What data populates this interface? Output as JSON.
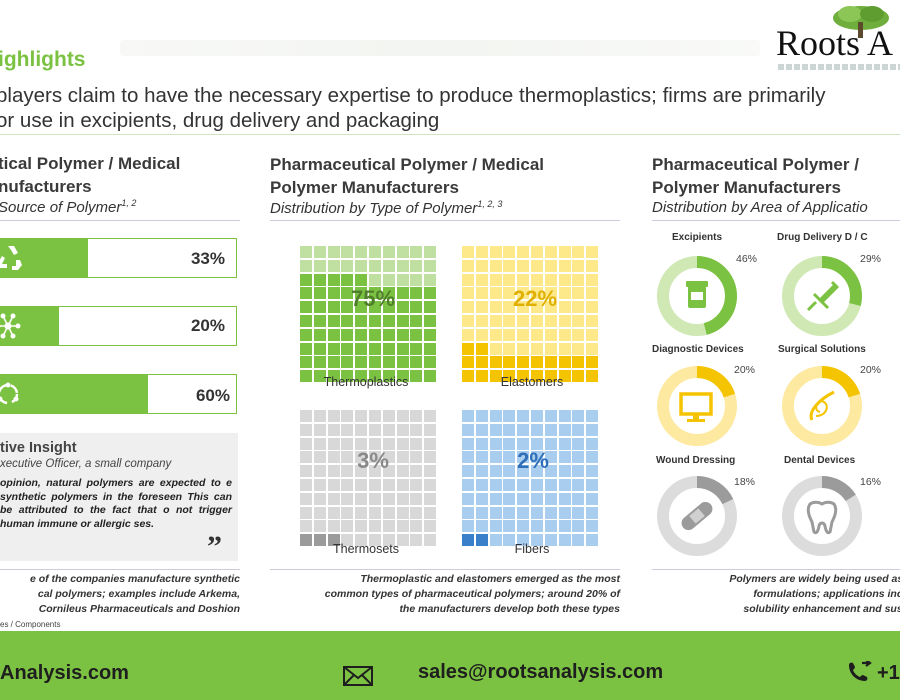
{
  "header": {
    "title": "ighlights",
    "subtitle_line1": "players claim to have the necessary expertise to produce thermoplastics; firms are primarily",
    "subtitle_line2": "or use in excipients, drug delivery and packaging"
  },
  "logo": {
    "text": "Roots A"
  },
  "left": {
    "title_line1": "tical Polymer / Medical",
    "title_line2": "nufacturers",
    "subtitle": "Source of Polymer",
    "subtitle_sup": "1, 2",
    "bars": [
      {
        "icon": "recycle-icon",
        "value": 33,
        "label": "33%"
      },
      {
        "icon": "molecule-icon",
        "value": 20,
        "label": "20%"
      },
      {
        "icon": "cycle-arrows-icon",
        "value": 60,
        "label": "60%"
      }
    ],
    "insight": {
      "title": "tive Insight",
      "subtitle": "xecutive Officer, a small company",
      "text": "opinion, natural polymers are expected to e synthetic polymers in the foreseen This can be attributed to the fact that o not trigger human immune or allergic ses.",
      "quote": "”"
    },
    "note_line1": "e of the companies manufacture synthetic",
    "note_line2": "cal polymers; examples include Arkema,",
    "note_line3": "Cornileus Pharmaceuticals and Doshion",
    "footnote": "es / Components"
  },
  "middle": {
    "title_line1": "Pharmaceutical Polymer / Medical",
    "title_line2": "Polymer Manufacturers",
    "subtitle": "Distribution by Type of Polymer",
    "subtitle_sup": "1, 2, 3",
    "waffles": [
      {
        "label": "Thermoplastics",
        "pct": "75%",
        "value": 75,
        "fill": "#7cc242",
        "empty": "#bfe0a0",
        "text": "#4f7f2a"
      },
      {
        "label": "Elastomers",
        "pct": "22%",
        "value": 22,
        "fill": "#f5c400",
        "empty": "#fde88a",
        "text": "#e0b000"
      },
      {
        "label": "Thermosets",
        "pct": "3%",
        "value": 3,
        "fill": "#9b9b9b",
        "empty": "#d8d8d8",
        "text": "#8a8a8a"
      },
      {
        "label": "Fibers",
        "pct": "2%",
        "value": 2,
        "fill": "#3a7fc9",
        "empty": "#a9cdee",
        "text": "#2f6fb8"
      }
    ],
    "note_line1": "Thermoplastic and elastomers emerged as the most",
    "note_line2": "common types of pharmaceutical polymers; around 20% of",
    "note_line3": "the manufacturers  develop both these types"
  },
  "right": {
    "title_line1": "Pharmaceutical Polymer /",
    "title_line2": "Polymer Manufacturers",
    "subtitle": "Distribution by Area of Applicatio",
    "donuts": [
      {
        "label": "Excipients",
        "pct": "46%",
        "value": 46,
        "color": "#7cc242",
        "light": "#cfe8b4",
        "icon": "pill-bottle-icon"
      },
      {
        "label": "Drug Delivery D / C",
        "pct": "29%",
        "value": 29,
        "color": "#7cc242",
        "light": "#cfe8b4",
        "icon": "syringe-icon"
      },
      {
        "label": "Diagnostic Devices",
        "pct": "20%",
        "value": 20,
        "color": "#f5c400",
        "light": "#fde9a0",
        "icon": "monitor-icon"
      },
      {
        "label": "Surgical Solutions",
        "pct": "20%",
        "value": 20,
        "color": "#f5c400",
        "light": "#fde9a0",
        "icon": "suture-needle-icon"
      },
      {
        "label": "Wound Dressing",
        "pct": "18%",
        "value": 18,
        "color": "#9b9b9b",
        "light": "#dcdcdc",
        "icon": "bandage-icon"
      },
      {
        "label": "Dental Devices",
        "pct": "16%",
        "value": 16,
        "color": "#9b9b9b",
        "light": "#dcdcdc",
        "icon": "tooth-icon"
      }
    ],
    "note_line1": "Polymers are widely being used as e",
    "note_line2": "formulations; applications inclu",
    "note_line3": "solubility enhancement and susta"
  },
  "footer": {
    "site": "Analysis.com",
    "email": "sales@rootsanalysis.com",
    "phone": "+1"
  }
}
